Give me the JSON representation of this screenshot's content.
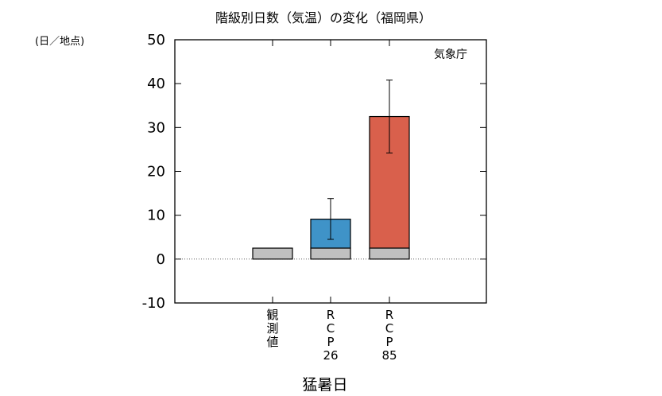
{
  "chart_data": {
    "type": "bar",
    "title": "階級別日数（気温）の変化（福岡県）",
    "unit_label": "(日／地点)",
    "credit": "気象庁",
    "xlabel": "猛暑日",
    "ylim": [
      -10,
      50
    ],
    "yticks": [
      "50",
      "40",
      "30",
      "20",
      "10",
      "0",
      "-10"
    ],
    "ytick_values": [
      50,
      40,
      30,
      20,
      10,
      0,
      -10
    ],
    "categories": [
      {
        "label": "観測値",
        "lines": [
          "観",
          "測",
          "値"
        ]
      },
      {
        "label": "RCP26",
        "lines": [
          "R",
          "C",
          "P",
          "26"
        ]
      },
      {
        "label": "RCP85",
        "lines": [
          "R",
          "C",
          "P",
          "85"
        ]
      }
    ],
    "series": [
      {
        "values": [
          2.5,
          2.5,
          2.5
        ],
        "color": "#c0c0c0"
      },
      {
        "values": [
          0,
          6.6,
          30.0
        ],
        "color_list": [
          null,
          "#3f93c8",
          "#d9604c"
        ]
      }
    ],
    "error_bars": [
      null,
      {
        "low": 4.5,
        "high": 13.8
      },
      {
        "low": 24.2,
        "high": 40.8
      }
    ],
    "colors": {
      "observed": "#c0c0c0",
      "rcp26": "#3f93c8",
      "rcp85": "#d9604c"
    },
    "zero_line": "dotted",
    "grid": false
  }
}
